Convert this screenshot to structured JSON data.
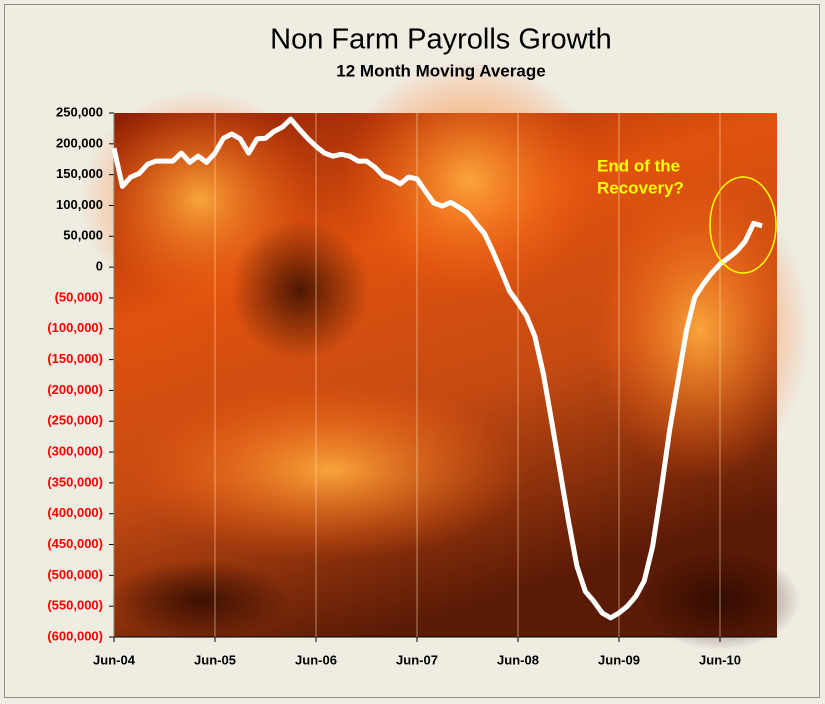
{
  "chart_data": {
    "type": "line",
    "title": "Non Farm Payrolls Growth",
    "subtitle": "12 Month Moving Average",
    "annotation": [
      "End of the",
      "Recovery?"
    ],
    "annotation_color": "#ffff00",
    "categories": [
      "Jun-04",
      null,
      null,
      null,
      null,
      null,
      null,
      null,
      null,
      null,
      null,
      null,
      "Jun-05",
      null,
      null,
      null,
      null,
      null,
      null,
      null,
      null,
      null,
      null,
      null,
      "Jun-06",
      null,
      null,
      null,
      null,
      null,
      null,
      null,
      null,
      null,
      null,
      null,
      "Jun-07",
      null,
      null,
      null,
      null,
      null,
      null,
      null,
      null,
      null,
      null,
      null,
      "Jun-08",
      null,
      null,
      null,
      null,
      null,
      null,
      null,
      null,
      null,
      null,
      null,
      "Jun-09",
      null,
      null,
      null,
      null,
      null,
      null,
      null,
      null,
      null,
      null,
      null,
      "Jun-10",
      null,
      null,
      null,
      null,
      null
    ],
    "series": [
      {
        "name": "Non Farm Payrolls Growth",
        "color": "#ffffff",
        "values": [
          193000,
          131000,
          146000,
          152000,
          167000,
          172000,
          172000,
          172000,
          185000,
          170000,
          180000,
          170000,
          185000,
          209000,
          216000,
          208000,
          185000,
          208000,
          209000,
          220000,
          227000,
          240000,
          224000,
          209000,
          196000,
          185000,
          180000,
          183000,
          180000,
          172000,
          172000,
          162000,
          148000,
          143000,
          135000,
          146000,
          143000,
          123000,
          104000,
          99000,
          105000,
          97000,
          88000,
          71000,
          55000,
          26000,
          -6000,
          -39000,
          -58000,
          -79000,
          -112000,
          -172000,
          -250000,
          -331000,
          -412000,
          -485000,
          -526000,
          -542000,
          -561000,
          -569000,
          -561000,
          -550000,
          -534000,
          -509000,
          -453000,
          -363000,
          -266000,
          -185000,
          -104000,
          -49000,
          -28000,
          -10000,
          5000,
          15000,
          26000,
          42000,
          71000,
          67000
        ]
      }
    ],
    "ylim": [
      -600000,
      250000
    ],
    "yticks": [
      {
        "value": -600000,
        "label": "(600,000)"
      },
      {
        "value": -550000,
        "label": "(550,000)"
      },
      {
        "value": -500000,
        "label": "(500,000)"
      },
      {
        "value": -450000,
        "label": "(450,000)"
      },
      {
        "value": -400000,
        "label": "(400,000)"
      },
      {
        "value": -350000,
        "label": "(350,000)"
      },
      {
        "value": -300000,
        "label": "(300,000)"
      },
      {
        "value": -250000,
        "label": "(250,000)"
      },
      {
        "value": -200000,
        "label": "(200,000)"
      },
      {
        "value": -150000,
        "label": "(150,000)"
      },
      {
        "value": -100000,
        "label": "(100,000)"
      },
      {
        "value": -50000,
        "label": "(50,000)"
      },
      0,
      {
        "value": 50000,
        "label": "50,000"
      },
      {
        "value": 100000,
        "label": "100,000"
      },
      {
        "value": 150000,
        "label": "150,000"
      },
      {
        "value": 200000,
        "label": "200,000"
      },
      {
        "value": 250000,
        "label": "250,000"
      }
    ],
    "negative_tick_color": "#ff0000",
    "grid": true
  }
}
